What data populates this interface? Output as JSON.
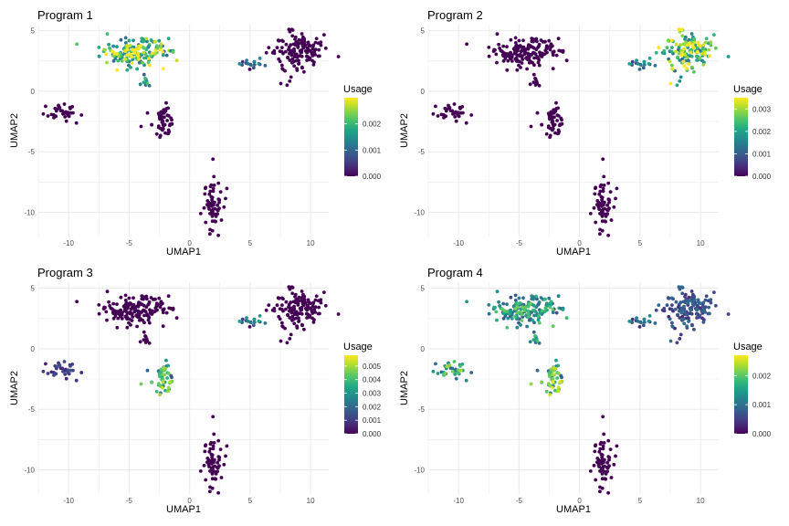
{
  "chart_data": [
    {
      "type": "scatter",
      "title": "Program 1",
      "xlabel": "UMAP1",
      "ylabel": "UMAP2",
      "xlim": [
        -12.5,
        11.5
      ],
      "ylim": [
        -12,
        5.5
      ],
      "xticks": [
        -10,
        -5,
        0,
        5,
        10
      ],
      "yticks": [
        5,
        0,
        -5,
        -10
      ],
      "grid": true,
      "legend": {
        "title": "Usage",
        "min": 0,
        "max": 0.003,
        "ticks": [
          0.0,
          0.001,
          0.002
        ],
        "tick_labels": [
          "0.000",
          "0.001",
          "0.002"
        ],
        "placement": "right"
      },
      "highlights": [
        {
          "region": "top-left",
          "value": 0.0026
        },
        {
          "region": "island",
          "value": 0.0018
        },
        {
          "region": "small-right",
          "value": 0.0012
        }
      ]
    },
    {
      "type": "scatter",
      "title": "Program 2",
      "xlabel": "UMAP1",
      "ylabel": "UMAP2",
      "xlim": [
        -12.5,
        11.5
      ],
      "ylim": [
        -12,
        5.5
      ],
      "xticks": [
        -10,
        -5,
        0,
        5,
        10
      ],
      "yticks": [
        5,
        0,
        -5,
        -10
      ],
      "grid": true,
      "legend": {
        "title": "Usage",
        "min": 0,
        "max": 0.0035,
        "ticks": [
          0.0,
          0.001,
          0.002,
          0.003
        ],
        "tick_labels": [
          "0.000",
          "0.001",
          "0.002",
          "0.003"
        ],
        "placement": "right"
      },
      "highlights": [
        {
          "region": "top-right",
          "value": 0.0031
        },
        {
          "region": "small-right",
          "value": 0.0017
        }
      ]
    },
    {
      "type": "scatter",
      "title": "Program 3",
      "xlabel": "UMAP1",
      "ylabel": "UMAP2",
      "xlim": [
        -12.5,
        11.5
      ],
      "ylim": [
        -12,
        5.5
      ],
      "xticks": [
        -10,
        -5,
        0,
        5,
        10
      ],
      "yticks": [
        5,
        0,
        -5,
        -10
      ],
      "grid": true,
      "legend": {
        "title": "Usage",
        "min": 0,
        "max": 0.0058,
        "ticks": [
          0.0,
          0.001,
          0.002,
          0.003,
          0.004,
          0.005
        ],
        "tick_labels": [
          "0.000",
          "0.001",
          "0.002",
          "0.003",
          "0.004",
          "0.005"
        ],
        "placement": "right"
      },
      "highlights": [
        {
          "region": "mid",
          "value": 0.0042
        },
        {
          "region": "small-right",
          "value": 0.0028
        },
        {
          "region": "left",
          "value": 0.0012
        }
      ]
    },
    {
      "type": "scatter",
      "title": "Program 4",
      "xlabel": "UMAP1",
      "ylabel": "UMAP2",
      "xlim": [
        -12.5,
        11.5
      ],
      "ylim": [
        -12,
        5.5
      ],
      "xticks": [
        -10,
        -5,
        0,
        5,
        10
      ],
      "yticks": [
        5,
        0,
        -5,
        -10
      ],
      "grid": true,
      "legend": {
        "title": "Usage",
        "min": 0,
        "max": 0.0027,
        "ticks": [
          0.0,
          0.001,
          0.002
        ],
        "tick_labels": [
          "0.000",
          "0.001",
          "0.002"
        ],
        "placement": "right"
      },
      "highlights": [
        {
          "region": "top-left",
          "value": 0.0017
        },
        {
          "region": "left",
          "value": 0.0019
        },
        {
          "region": "mid",
          "value": 0.0021
        },
        {
          "region": "island",
          "value": 0.0016
        },
        {
          "region": "small-right",
          "value": 0.0011
        },
        {
          "region": "top-right",
          "value": 0.0008
        }
      ]
    }
  ],
  "clusters": [
    {
      "id": "top-left",
      "center": [
        -4.8,
        3.2
      ],
      "spread": [
        1.3,
        0.6
      ],
      "n": 150
    },
    {
      "id": "top-left-b",
      "center": [
        -2.5,
        3.6
      ],
      "spread": [
        0.4,
        0.25
      ],
      "n": 18
    },
    {
      "id": "island",
      "center": [
        -3.6,
        0.75
      ],
      "spread": [
        0.2,
        0.3
      ],
      "n": 10
    },
    {
      "id": "small-right",
      "center": [
        5.2,
        2.3
      ],
      "spread": [
        0.6,
        0.15
      ],
      "n": 16
    },
    {
      "id": "top-right",
      "center": [
        8.7,
        3.2
      ],
      "spread": [
        1.1,
        0.9
      ],
      "n": 140
    },
    {
      "id": "left",
      "center": [
        -10.6,
        -1.7
      ],
      "spread": [
        0.7,
        0.35
      ],
      "n": 34
    },
    {
      "id": "mid",
      "center": [
        -2.2,
        -2.4
      ],
      "spread": [
        0.45,
        0.6
      ],
      "n": 55
    },
    {
      "id": "bottom",
      "center": [
        1.8,
        -9.4
      ],
      "spread": [
        0.5,
        1.2
      ],
      "n": 65
    }
  ],
  "viridis": [
    "#440154",
    "#482475",
    "#414487",
    "#355f8d",
    "#2a788e",
    "#21918c",
    "#22a884",
    "#44bf70",
    "#7ad151",
    "#bddf26",
    "#fde725"
  ]
}
